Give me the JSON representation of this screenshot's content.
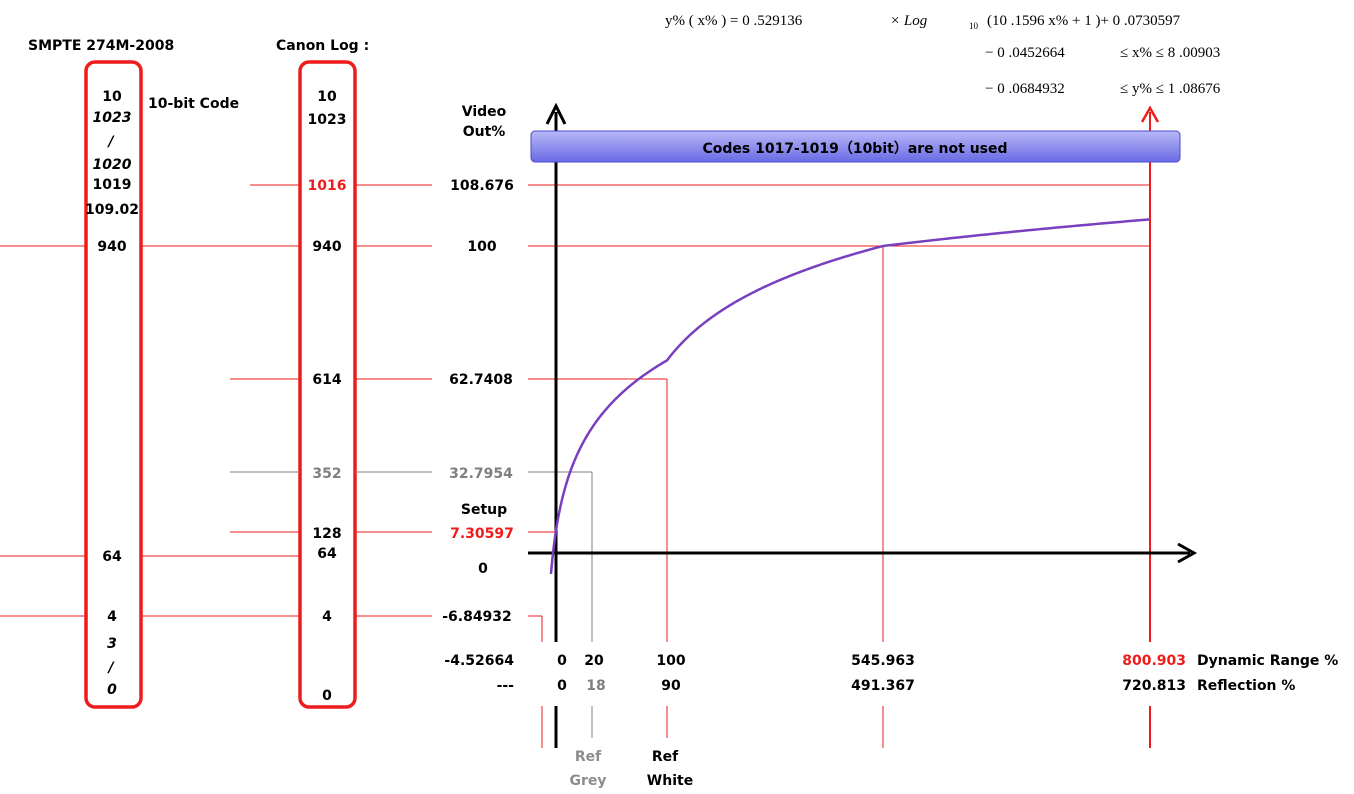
{
  "colors": {
    "red": "#ee1c1c",
    "grey": "#7f7f7f",
    "curve": "#7a3fbf",
    "banner_top": "#a9a9f5",
    "banner_bottom": "#7070e8",
    "banner_border": "#4a4ad0"
  },
  "headers": {
    "smpte": "SMPTE 274M-2008",
    "canonlog": "Canon Log :",
    "tenbit": "10-bit Code",
    "video_out": [
      "Video",
      "Out%"
    ],
    "setup": "Setup"
  },
  "formula": {
    "line1": {
      "lhs": "y% ( x% ) = 0 .529136",
      "times": "× Log",
      "sub": "10",
      "arg": "(10 .1596   x% + 1 )+ 0 .0730597"
    },
    "line2": {
      "lo": "− 0 .0452664",
      "mid": "≤ x% ≤ 8 .00903"
    },
    "line3": {
      "lo": "− 0 .0684932",
      "mid": "≤ y% ≤ 1 .08676"
    }
  },
  "banner": {
    "text": "Codes 1017-1019（10bit）are not used"
  },
  "smpte_codes": [
    {
      "text": "10",
      "style": "bold"
    },
    {
      "text": "1023",
      "style": "italic"
    },
    {
      "text": "/",
      "style": "italic"
    },
    {
      "text": "1020",
      "style": "italic"
    },
    {
      "text": "1019",
      "style": "bold"
    },
    {
      "text": "109.02",
      "style": "small"
    },
    {
      "text": "940",
      "style": "bold"
    },
    {
      "text": "64",
      "style": "bold"
    },
    {
      "text": "4",
      "style": "bold"
    },
    {
      "text": "3",
      "style": "italic"
    },
    {
      "text": "/",
      "style": "italic"
    },
    {
      "text": "0",
      "style": "italic"
    }
  ],
  "canon_codes": [
    {
      "text": "10",
      "color": "black"
    },
    {
      "text": "1023",
      "color": "black"
    },
    {
      "text": "1016",
      "color": "red"
    },
    {
      "text": "940",
      "color": "black"
    },
    {
      "text": "614",
      "color": "black"
    },
    {
      "text": "352",
      "color": "grey"
    },
    {
      "text": "128",
      "color": "black"
    },
    {
      "text": "64",
      "color": "black"
    },
    {
      "text": "4",
      "color": "black"
    },
    {
      "text": "0",
      "color": "black"
    }
  ],
  "video_levels": [
    {
      "text": "108.676",
      "color": "black"
    },
    {
      "text": "100",
      "color": "black"
    },
    {
      "text": "62.7408",
      "color": "black"
    },
    {
      "text": "32.7954",
      "color": "grey"
    },
    {
      "text": "7.30597",
      "color": "red"
    },
    {
      "text": "0",
      "color": "black"
    },
    {
      "text": "-6.84932",
      "color": "black"
    }
  ],
  "dynamic_range": {
    "values": [
      {
        "text": "-4.52664",
        "color": "black"
      },
      {
        "text": "0",
        "color": "black"
      },
      {
        "text": "20",
        "color": "black"
      },
      {
        "text": "100",
        "color": "black"
      },
      {
        "text": "545.963",
        "color": "black"
      },
      {
        "text": "800.903",
        "color": "red"
      }
    ],
    "label": "Dynamic Range %"
  },
  "reflection": {
    "values": [
      {
        "text": "---",
        "color": "black"
      },
      {
        "text": "0",
        "color": "black"
      },
      {
        "text": "18",
        "color": "grey"
      },
      {
        "text": "90",
        "color": "black"
      },
      {
        "text": "491.367",
        "color": "black"
      },
      {
        "text": "720.813",
        "color": "black"
      }
    ],
    "label": "Reflection %"
  },
  "ref_labels": {
    "grey": [
      "Ref",
      "Grey"
    ],
    "white": [
      "Ref",
      "White"
    ]
  }
}
